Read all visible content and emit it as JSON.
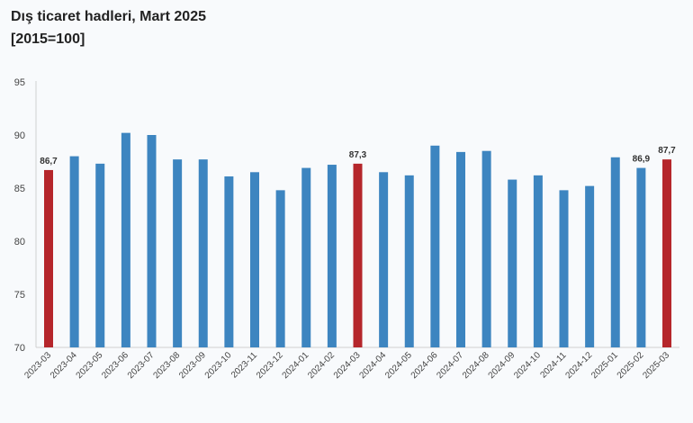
{
  "chart_data": {
    "type": "bar",
    "title": "Dış ticaret hadleri, Mart 2025",
    "subtitle": "[2015=100]",
    "xlabel": "",
    "ylabel": "",
    "ylim": [
      70,
      95
    ],
    "yticks": [
      70,
      75,
      80,
      85,
      90,
      95
    ],
    "grid": false,
    "categories": [
      "2023-03",
      "2023-04",
      "2023-05",
      "2023-06",
      "2023-07",
      "2023-08",
      "2023-09",
      "2023-10",
      "2023-11",
      "2023-12",
      "2024-01",
      "2024-02",
      "2024-03",
      "2024-04",
      "2024-05",
      "2024-06",
      "2024-07",
      "2024-08",
      "2024-09",
      "2024-10",
      "2024-11",
      "2024-12",
      "2025-01",
      "2025-02",
      "2025-03"
    ],
    "values": [
      86.7,
      88.0,
      87.3,
      90.2,
      90.0,
      87.7,
      87.7,
      86.1,
      86.5,
      84.8,
      86.9,
      87.2,
      87.3,
      86.5,
      86.2,
      89.0,
      88.4,
      88.5,
      85.8,
      86.2,
      84.8,
      85.2,
      87.9,
      86.9,
      87.7
    ],
    "highlighted": [
      0,
      12,
      24
    ],
    "data_labels": [
      {
        "index": 0,
        "text": "86,7"
      },
      {
        "index": 12,
        "text": "87,3"
      },
      {
        "index": 23,
        "text": "86,9"
      },
      {
        "index": 24,
        "text": "87,7"
      }
    ],
    "colors": {
      "bar": "#3d85c0",
      "highlight": "#b5262b",
      "axis": "#cccccc"
    }
  }
}
